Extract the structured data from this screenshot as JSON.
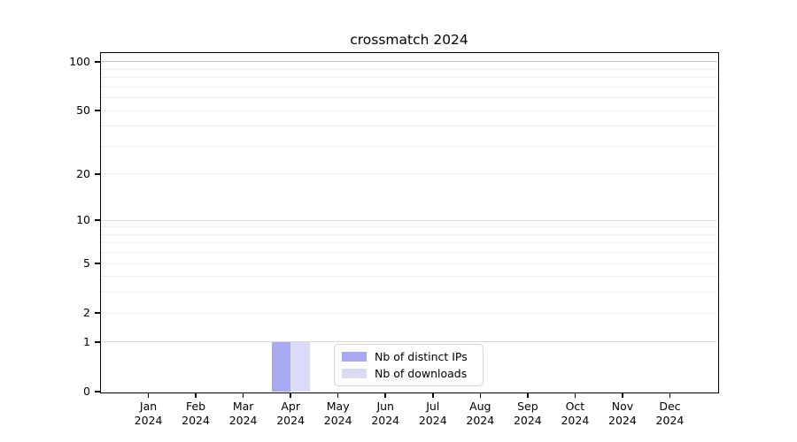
{
  "chart_data": {
    "type": "bar",
    "title": "crossmatch 2024",
    "categories": [
      "Jan",
      "Feb",
      "Mar",
      "Apr",
      "May",
      "Jun",
      "Jul",
      "Aug",
      "Sep",
      "Oct",
      "Nov",
      "Dec"
    ],
    "category_year": "2024",
    "series": [
      {
        "name": "Nb of distinct IPs",
        "color": "#a8a8f3",
        "values": [
          0,
          0,
          0,
          1,
          0,
          0,
          0,
          0,
          0,
          0,
          0,
          0
        ]
      },
      {
        "name": "Nb of downloads",
        "color": "#dbdbf8",
        "values": [
          0,
          0,
          0,
          1,
          0,
          0,
          0,
          0,
          0,
          0,
          0,
          0
        ]
      }
    ],
    "xlabel": "",
    "ylabel": "",
    "yscale": "log1p",
    "ylim": [
      0,
      113.3
    ],
    "yticks": [
      0,
      1,
      2,
      5,
      10,
      20,
      50,
      100
    ],
    "minor_yticks": [
      3,
      4,
      6,
      7,
      8,
      9,
      30,
      40,
      60,
      70,
      80,
      90
    ],
    "grid": "horizontal",
    "legend_position": "lower center"
  },
  "palette": {
    "background": "#ffffff",
    "spine": "#000000",
    "text": "#000000",
    "grid_strong": "#c3c3c3",
    "grid_mid": "#d8d8d8",
    "grid_light": "#ededed",
    "legend_border": "#d2d2d2"
  }
}
